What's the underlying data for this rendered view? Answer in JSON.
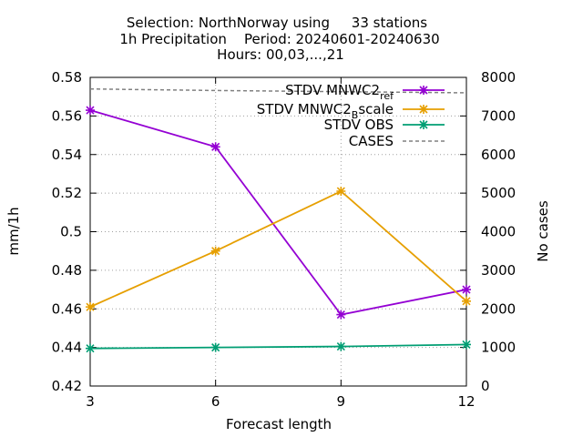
{
  "chart_data": {
    "type": "line",
    "title_lines": [
      "Selection: NorthNorway using     33 stations",
      "1h Precipitation    Period: 20240601-20240630",
      "Hours: 00,03,...,21"
    ],
    "xlabel": "Forecast length",
    "ylabel": "mm/1h",
    "y2label": "No cases",
    "x": [
      3,
      6,
      9,
      12
    ],
    "xlim": [
      3,
      12
    ],
    "ylim": [
      0.42,
      0.58
    ],
    "y2lim": [
      0,
      8000
    ],
    "xticks": [
      "3",
      "6",
      "9",
      "12"
    ],
    "yticks": [
      "0.42",
      "0.44",
      "0.46",
      "0.48",
      "0.5",
      "0.52",
      "0.54",
      "0.56",
      "0.58"
    ],
    "y2ticks": [
      "0",
      "1000",
      "2000",
      "3000",
      "4000",
      "5000",
      "6000",
      "7000",
      "8000"
    ],
    "grid": true,
    "legend_position": "top-right",
    "series": [
      {
        "name": "STDV MNWC2_ref",
        "legend_main": "STDV MNWC2",
        "legend_sub": "ref",
        "color": "#9400d3",
        "axis": "y",
        "marker": true,
        "values": [
          0.563,
          0.544,
          0.457,
          0.47
        ]
      },
      {
        "name": "STDV MNWC2_Bscale",
        "legend_main": "STDV MNWC2",
        "legend_sub": "B",
        "legend_tail": "scale",
        "color": "#e69f00",
        "axis": "y",
        "marker": true,
        "values": [
          0.461,
          0.49,
          0.521,
          0.464
        ]
      },
      {
        "name": "STDV OBS",
        "legend_main": "STDV OBS",
        "color": "#009e73",
        "axis": "y",
        "marker": true,
        "values": [
          0.4395,
          0.44,
          0.4405,
          0.4415
        ]
      },
      {
        "name": "CASES",
        "legend_main": "CASES",
        "color": "#808080",
        "axis": "y2",
        "dashed": true,
        "marker": false,
        "values": [
          7700,
          7660,
          7630,
          7600
        ]
      }
    ]
  }
}
